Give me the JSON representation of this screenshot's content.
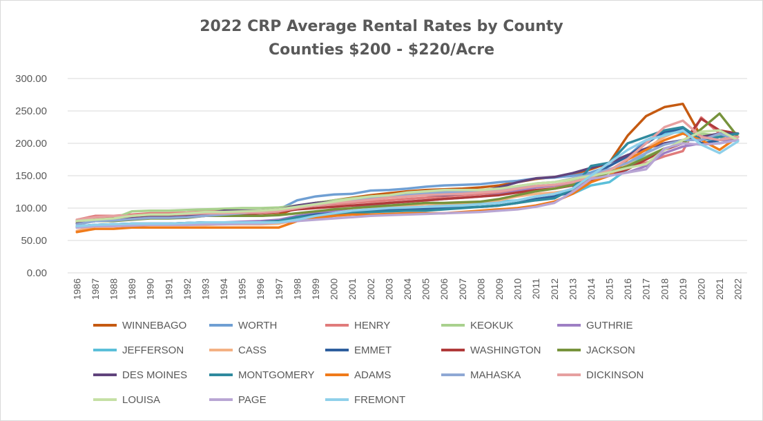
{
  "chart_data": {
    "type": "line",
    "title": "2022 CRP Average Rental Rates by County",
    "subtitle": "Counties $200 - $220/Acre",
    "xlabel": "",
    "ylabel": "",
    "ylim": [
      0,
      300
    ],
    "yticks": [
      "0.00",
      "50.00",
      "100.00",
      "150.00",
      "200.00",
      "250.00",
      "300.00"
    ],
    "grid": true,
    "legend_position": "bottom",
    "x": [
      "1986",
      "1987",
      "1988",
      "1989",
      "1990",
      "1991",
      "1992",
      "1993",
      "1994",
      "1995",
      "1996",
      "1997",
      "1998",
      "1999",
      "2000",
      "2001",
      "2002",
      "2003",
      "2004",
      "2005",
      "2006",
      "2007",
      "2008",
      "2009",
      "2010",
      "2011",
      "2012",
      "2013",
      "2014",
      "2015",
      "2016",
      "2017",
      "2018",
      "2019",
      "2020",
      "2021",
      "2022"
    ],
    "series": [
      {
        "name": "WINNEBAGO",
        "color": "#c55a11",
        "values": [
          80,
          85,
          85,
          85,
          85,
          85,
          86,
          88,
          88,
          88,
          88,
          90,
          100,
          108,
          112,
          116,
          120,
          123,
          126,
          128,
          129,
          130,
          132,
          135,
          140,
          145,
          148,
          152,
          160,
          170,
          212,
          242,
          256,
          261,
          210,
          215,
          210
        ]
      },
      {
        "name": "WORTH",
        "color": "#6f9fd3",
        "values": [
          80,
          84,
          84,
          86,
          88,
          88,
          90,
          92,
          94,
          95,
          96,
          98,
          112,
          118,
          121,
          122,
          127,
          128,
          130,
          133,
          135,
          136,
          137,
          140,
          142,
          146,
          147,
          150,
          155,
          165,
          180,
          205,
          215,
          222,
          205,
          210,
          205
        ]
      },
      {
        "name": "HENRY",
        "color": "#e07b7b",
        "values": [
          82,
          88,
          88,
          90,
          92,
          92,
          93,
          95,
          96,
          96,
          96,
          98,
          102,
          104,
          106,
          108,
          110,
          112,
          114,
          116,
          118,
          120,
          122,
          124,
          128,
          132,
          134,
          138,
          145,
          155,
          165,
          170,
          180,
          188,
          240,
          215,
          210
        ]
      },
      {
        "name": "KEOKUK",
        "color": "#a9d18e",
        "values": [
          78,
          82,
          84,
          95,
          96,
          96,
          97,
          98,
          99,
          100,
          100,
          101,
          104,
          108,
          112,
          115,
          118,
          120,
          122,
          124,
          125,
          126,
          128,
          130,
          134,
          138,
          140,
          144,
          148,
          156,
          168,
          180,
          192,
          200,
          215,
          212,
          205
        ]
      },
      {
        "name": "GUTHRIE",
        "color": "#9e7fc4",
        "values": [
          70,
          74,
          75,
          76,
          76,
          76,
          77,
          78,
          78,
          79,
          80,
          82,
          88,
          92,
          96,
          100,
          104,
          108,
          110,
          112,
          114,
          116,
          118,
          121,
          126,
          132,
          135,
          140,
          146,
          150,
          155,
          165,
          185,
          195,
          200,
          205,
          205
        ]
      },
      {
        "name": "JEFFERSON",
        "color": "#5bbfd9",
        "values": [
          72,
          74,
          75,
          75,
          76,
          76,
          76,
          77,
          77,
          78,
          78,
          78,
          80,
          84,
          88,
          92,
          95,
          98,
          100,
          102,
          104,
          106,
          108,
          110,
          112,
          118,
          122,
          122,
          135,
          140,
          160,
          185,
          215,
          218,
          210,
          200,
          205
        ]
      },
      {
        "name": "CASS",
        "color": "#f4b183",
        "values": [
          65,
          72,
          72,
          74,
          74,
          74,
          74,
          74,
          75,
          75,
          75,
          76,
          82,
          86,
          90,
          94,
          98,
          102,
          104,
          106,
          107,
          108,
          110,
          112,
          118,
          122,
          124,
          128,
          140,
          150,
          168,
          192,
          210,
          222,
          210,
          205,
          215
        ]
      },
      {
        "name": "EMMET",
        "color": "#2e5f9e",
        "values": [
          72,
          74,
          75,
          76,
          76,
          76,
          77,
          78,
          78,
          78,
          78,
          80,
          86,
          90,
          92,
          94,
          96,
          97,
          98,
          99,
          100,
          101,
          102,
          104,
          108,
          114,
          118,
          125,
          150,
          165,
          180,
          200,
          218,
          222,
          200,
          205,
          210
        ]
      },
      {
        "name": "WASHINGTON",
        "color": "#b03a3a",
        "values": [
          80,
          84,
          85,
          86,
          88,
          88,
          89,
          90,
          90,
          91,
          92,
          94,
          98,
          100,
          102,
          104,
          106,
          108,
          110,
          112,
          114,
          116,
          118,
          120,
          124,
          128,
          130,
          135,
          142,
          150,
          160,
          175,
          190,
          200,
          238,
          220,
          215
        ]
      },
      {
        "name": "JACKSON",
        "color": "#77933c",
        "values": [
          76,
          80,
          80,
          82,
          84,
          84,
          85,
          88,
          88,
          88,
          88,
          89,
          92,
          95,
          98,
          100,
          102,
          104,
          106,
          108,
          108,
          109,
          110,
          114,
          120,
          126,
          130,
          136,
          145,
          155,
          165,
          178,
          192,
          200,
          222,
          246,
          210
        ]
      },
      {
        "name": "DES MOINES",
        "color": "#60437c",
        "values": [
          76,
          80,
          82,
          84,
          86,
          86,
          87,
          92,
          96,
          96,
          96,
          98,
          104,
          108,
          110,
          112,
          115,
          118,
          120,
          120,
          120,
          122,
          126,
          132,
          140,
          146,
          148,
          154,
          162,
          170,
          182,
          192,
          200,
          205,
          210,
          215,
          215
        ]
      },
      {
        "name": "MONTGOMERY",
        "color": "#2f8a9e",
        "values": [
          70,
          74,
          75,
          76,
          76,
          76,
          77,
          78,
          78,
          78,
          78,
          80,
          86,
          88,
          90,
          92,
          94,
          95,
          96,
          96,
          98,
          100,
          102,
          104,
          108,
          112,
          115,
          130,
          165,
          170,
          200,
          210,
          220,
          225,
          205,
          210,
          215
        ]
      },
      {
        "name": "ADAMS",
        "color": "#f07b1a",
        "values": [
          63,
          68,
          68,
          70,
          70,
          70,
          70,
          70,
          70,
          70,
          70,
          70,
          80,
          85,
          88,
          90,
          90,
          91,
          92,
          92,
          92,
          94,
          96,
          98,
          100,
          104,
          110,
          122,
          140,
          150,
          175,
          190,
          205,
          215,
          205,
          190,
          210
        ]
      },
      {
        "name": "MAHASKA",
        "color": "#8fa8d4",
        "values": [
          75,
          80,
          81,
          83,
          85,
          85,
          86,
          88,
          90,
          92,
          94,
          96,
          100,
          104,
          108,
          112,
          116,
          118,
          120,
          122,
          124,
          125,
          126,
          128,
          132,
          138,
          140,
          146,
          152,
          160,
          170,
          185,
          198,
          205,
          205,
          215,
          205
        ]
      },
      {
        "name": "DICKINSON",
        "color": "#e6a0a0",
        "values": [
          82,
          86,
          88,
          88,
          90,
          90,
          91,
          92,
          92,
          93,
          93,
          95,
          100,
          104,
          108,
          110,
          113,
          116,
          118,
          120,
          121,
          122,
          124,
          126,
          130,
          134,
          136,
          140,
          148,
          158,
          176,
          200,
          225,
          235,
          210,
          205,
          210
        ]
      },
      {
        "name": "LOUISA",
        "color": "#c5e0a5",
        "values": [
          80,
          82,
          84,
          88,
          90,
          90,
          92,
          94,
          94,
          95,
          96,
          98,
          102,
          106,
          110,
          114,
          118,
          120,
          124,
          126,
          128,
          128,
          128,
          130,
          134,
          138,
          140,
          145,
          150,
          155,
          162,
          168,
          190,
          205,
          218,
          220,
          205
        ]
      },
      {
        "name": "PAGE",
        "color": "#b9a6d4",
        "values": [
          70,
          72,
          72,
          73,
          74,
          74,
          74,
          75,
          75,
          76,
          76,
          78,
          80,
          82,
          84,
          86,
          88,
          89,
          90,
          91,
          92,
          93,
          94,
          96,
          98,
          102,
          108,
          125,
          145,
          150,
          155,
          160,
          192,
          200,
          198,
          200,
          205
        ]
      },
      {
        "name": "FREMONT",
        "color": "#8fd0ea",
        "values": [
          72,
          74,
          75,
          76,
          76,
          76,
          77,
          78,
          78,
          78,
          78,
          78,
          82,
          88,
          92,
          96,
          98,
          100,
          101,
          102,
          103,
          104,
          106,
          108,
          112,
          118,
          122,
          130,
          150,
          170,
          190,
          205,
          212,
          220,
          198,
          185,
          203
        ]
      }
    ]
  }
}
